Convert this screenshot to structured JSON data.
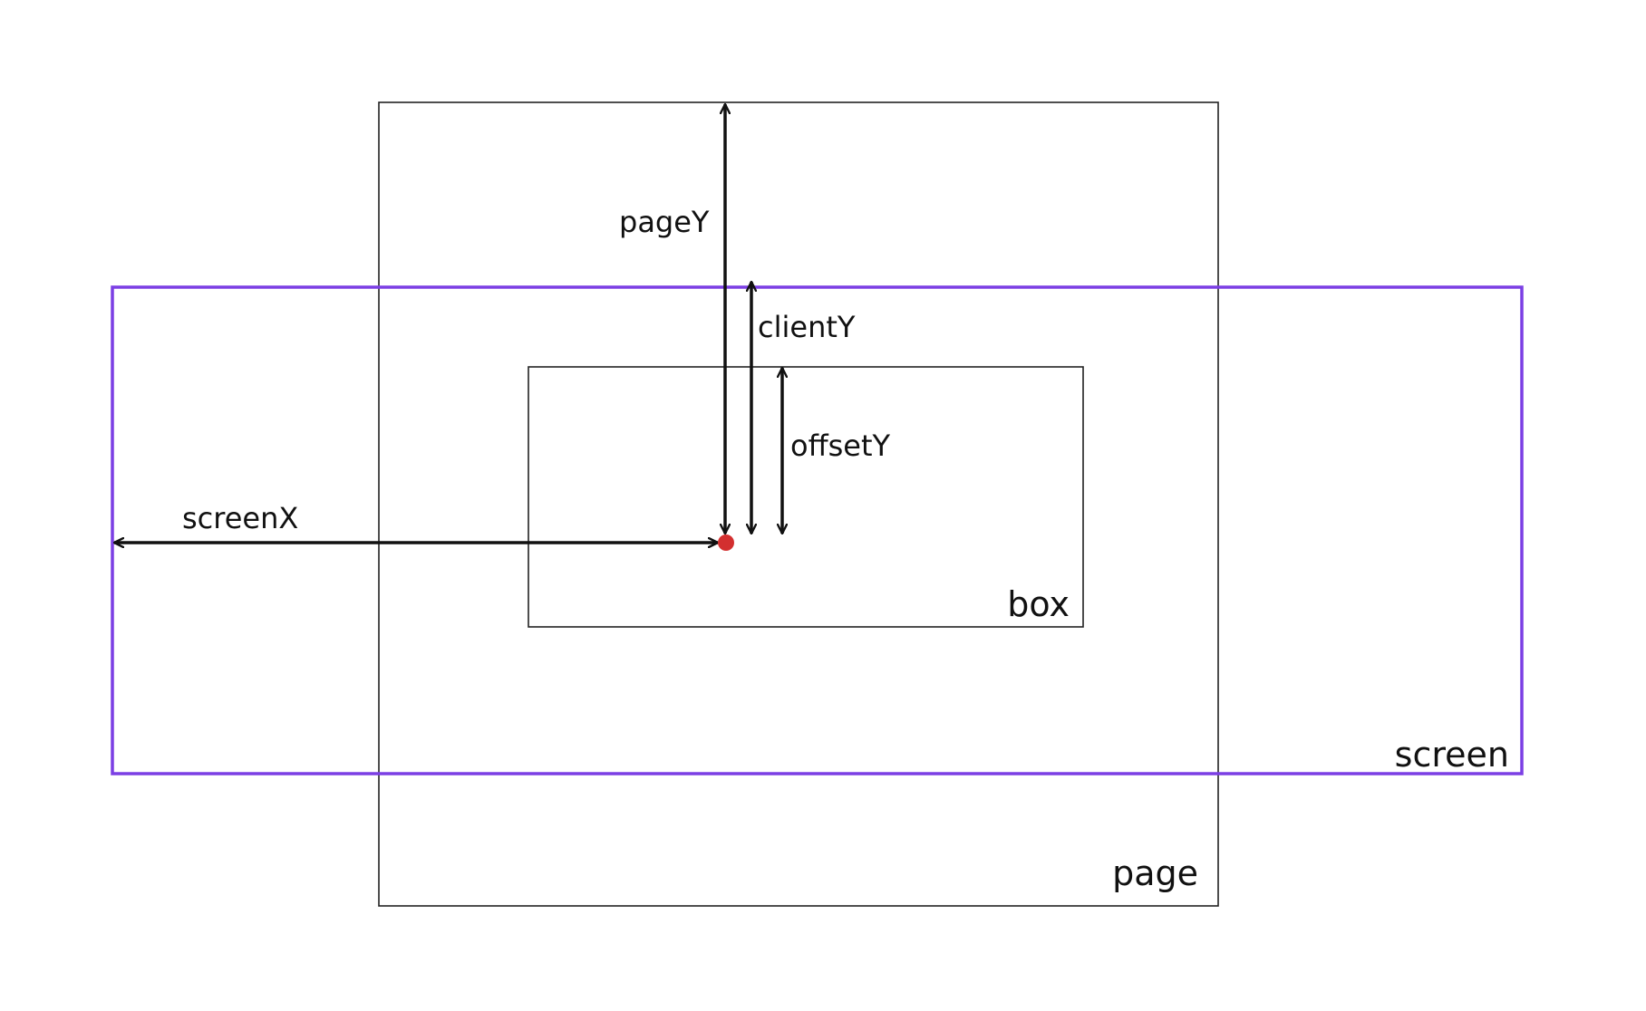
{
  "labels": {
    "pageY": "pageY",
    "clientY": "clientY",
    "offsetY": "offsetY",
    "screenX": "screenX",
    "box": "box",
    "screen": "screen",
    "page": "page"
  },
  "colors": {
    "screen_border": "#7b3fe4",
    "rect_border": "#222222",
    "arrow": "#111111",
    "event_point": "#d32f2f"
  }
}
